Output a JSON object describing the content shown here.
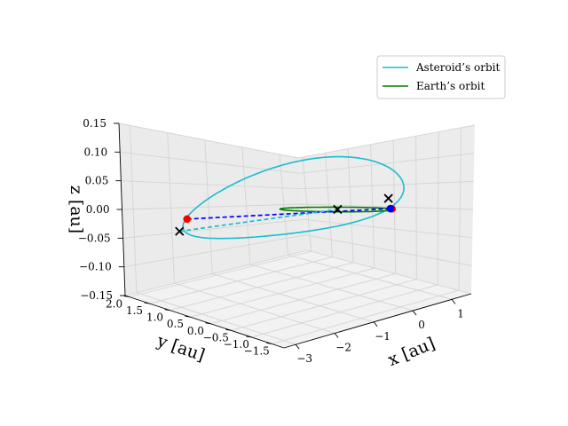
{
  "chart_data": {
    "type": "line",
    "projection": "3d",
    "xlabel": "x [au]",
    "ylabel": "y [au]",
    "zlabel": "z [au]",
    "xlim": [
      -3.3,
      1.5
    ],
    "ylim": [
      -1.8,
      2.1
    ],
    "zlim": [
      -0.15,
      0.15
    ],
    "xticks": [
      "−3",
      "−2",
      "−1",
      "0",
      "1"
    ],
    "yticks": [
      "−1.5",
      "−1.0",
      "−0.5",
      "0.0",
      "0.5",
      "1.0",
      "1.5",
      "2.0"
    ],
    "zticks": [
      "−0.15",
      "−0.10",
      "−0.05",
      "0.00",
      "0.05",
      "0.10",
      "0.15"
    ],
    "grid": true,
    "legend_position": "top-right",
    "series": [
      {
        "name": "Asteroid’s orbit",
        "color": "#17becf",
        "orbit": {
          "a": 2.0,
          "e": 0.48,
          "inc_deg": 2.5,
          "node_deg": 162,
          "peri_deg": 185
        }
      },
      {
        "name": "Earth’s orbit",
        "color": "#008000",
        "orbit": {
          "a": 1.0,
          "e": 0.0,
          "inc_deg": 0,
          "node_deg": 0,
          "peri_deg": 0
        }
      }
    ],
    "points": [
      {
        "kind": "cross",
        "color": "#000000",
        "x": 0.0,
        "y": 0.0,
        "z": 0.0
      },
      {
        "kind": "cross",
        "color": "#000000",
        "x": 0.94,
        "y": -0.35,
        "z": 0.02
      },
      {
        "kind": "cross",
        "color": "#000000",
        "x": -1.97,
        "y": 1.95,
        "z": -0.045
      },
      {
        "kind": "dot",
        "color": "#ff0000",
        "x": 0.86,
        "y": -0.5,
        "z": 0.0
      },
      {
        "kind": "dot",
        "color": "#ff0000",
        "x": -1.95,
        "y": 1.78,
        "z": -0.02
      },
      {
        "kind": "dot",
        "color": "#0000ff",
        "x": 0.9,
        "y": -0.43,
        "z": 0.0
      }
    ],
    "dashed_lines": [
      {
        "color": "#0000ff",
        "from": [
          -1.95,
          1.78,
          -0.02
        ],
        "to": [
          0.9,
          -0.43,
          0.0
        ]
      },
      {
        "color": "#17becf",
        "from": [
          -1.97,
          1.95,
          -0.045
        ],
        "to": [
          0.0,
          0.0,
          0.0
        ]
      }
    ]
  }
}
